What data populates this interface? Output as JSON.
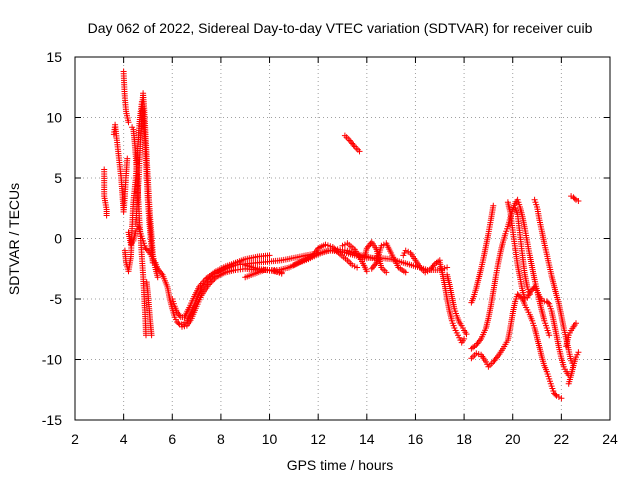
{
  "chart_data": {
    "type": "scatter",
    "title": "Day 062 of 2022, Sidereal Day-to-day VTEC variation (SDTVAR) for receiver cuib",
    "xlabel": "GPS time / hours",
    "ylabel": "SDTVAR / TECUs",
    "xlim": [
      2,
      24
    ],
    "ylim": [
      -15,
      15
    ],
    "xticks": [
      2,
      4,
      6,
      8,
      10,
      12,
      14,
      16,
      18,
      20,
      22,
      24
    ],
    "yticks": [
      -15,
      -10,
      -5,
      0,
      5,
      10,
      15
    ],
    "grid": true,
    "marker": "+",
    "color": "#ff0000",
    "tracks": [
      [
        [
          3.2,
          5.7
        ],
        [
          3.2,
          3.5
        ],
        [
          3.3,
          2.4
        ],
        [
          3.3,
          1.9
        ]
      ],
      [
        [
          3.6,
          8.6
        ],
        [
          3.65,
          9.4
        ],
        [
          3.9,
          5.0
        ],
        [
          3.95,
          3.6
        ],
        [
          4.0,
          2.2
        ],
        [
          4.05,
          3.5
        ],
        [
          4.1,
          5.2
        ],
        [
          4.15,
          6.6
        ]
      ],
      [
        [
          4.0,
          13.8
        ],
        [
          4.05,
          11.6
        ],
        [
          4.1,
          10.5
        ],
        [
          4.2,
          9.6
        ]
      ],
      [
        [
          4.05,
          -1.0
        ],
        [
          4.1,
          -2.0
        ],
        [
          4.2,
          -2.7
        ],
        [
          4.3,
          -1.5
        ],
        [
          4.35,
          1.0
        ],
        [
          4.4,
          3.0
        ],
        [
          4.5,
          5.0
        ],
        [
          4.55,
          6.5
        ],
        [
          4.6,
          8.0
        ],
        [
          4.65,
          9.5
        ],
        [
          4.7,
          10.5
        ],
        [
          4.75,
          11.3
        ],
        [
          4.8,
          10.5
        ],
        [
          4.85,
          9.0
        ],
        [
          4.9,
          7.0
        ],
        [
          4.95,
          5.0
        ],
        [
          5.0,
          3.0
        ],
        [
          5.05,
          1.5
        ],
        [
          5.1,
          0.3
        ],
        [
          5.15,
          -1.0
        ],
        [
          5.2,
          -2.0
        ]
      ],
      [
        [
          4.35,
          9.2
        ],
        [
          4.4,
          9.0
        ],
        [
          4.45,
          8.0
        ],
        [
          4.5,
          6.8
        ],
        [
          4.55,
          5.2
        ],
        [
          4.6,
          3.4
        ],
        [
          4.65,
          1.5
        ],
        [
          4.7,
          0.0
        ],
        [
          4.75,
          -1.5
        ],
        [
          4.8,
          -3.0
        ],
        [
          4.85,
          -5.0
        ],
        [
          4.9,
          -7.0
        ],
        [
          4.92,
          -8.0
        ]
      ],
      [
        [
          4.5,
          1.2
        ],
        [
          4.55,
          2.6
        ],
        [
          4.6,
          4.2
        ],
        [
          4.65,
          6.2
        ],
        [
          4.7,
          8.5
        ],
        [
          4.75,
          10.4
        ],
        [
          4.8,
          12.0
        ],
        [
          4.85,
          10.6
        ],
        [
          4.9,
          8.6
        ],
        [
          4.95,
          6.6
        ],
        [
          5.0,
          4.8
        ],
        [
          5.05,
          3.0
        ],
        [
          5.1,
          1.4
        ],
        [
          5.15,
          0.2
        ],
        [
          5.2,
          -1.3
        ],
        [
          5.3,
          -2.4
        ],
        [
          5.4,
          -3.2
        ]
      ],
      [
        [
          4.2,
          0.5
        ],
        [
          4.25,
          0.0
        ],
        [
          4.3,
          -0.5
        ],
        [
          4.4,
          -0.2
        ],
        [
          4.5,
          0.6
        ],
        [
          4.6,
          1.0
        ],
        [
          4.7,
          0.4
        ],
        [
          4.8,
          -0.2
        ],
        [
          4.9,
          -0.8
        ],
        [
          5.0,
          -1.0
        ],
        [
          5.1,
          -1.3
        ],
        [
          5.2,
          -1.7
        ],
        [
          5.3,
          -2.0
        ]
      ],
      [
        [
          4.95,
          -3.6
        ],
        [
          5.0,
          -4.6
        ],
        [
          5.05,
          -5.8
        ],
        [
          5.1,
          -7.0
        ],
        [
          5.15,
          -8.0
        ]
      ],
      [
        [
          5.3,
          -2.0
        ],
        [
          5.4,
          -2.5
        ],
        [
          5.6,
          -3.0
        ],
        [
          5.8,
          -4.0
        ],
        [
          5.9,
          -5.0
        ],
        [
          6.0,
          -5.8
        ],
        [
          6.1,
          -6.5
        ],
        [
          6.2,
          -6.9
        ],
        [
          6.3,
          -7.1
        ],
        [
          6.45,
          -7.1
        ],
        [
          6.6,
          -6.8
        ],
        [
          6.8,
          -6.0
        ],
        [
          7.0,
          -5.0
        ],
        [
          7.2,
          -4.2
        ],
        [
          7.5,
          -3.4
        ],
        [
          7.8,
          -2.9
        ],
        [
          8.2,
          -2.5
        ],
        [
          8.6,
          -2.2
        ],
        [
          9.0,
          -2.1
        ],
        [
          9.5,
          -2.0
        ],
        [
          10.0,
          -1.9
        ],
        [
          10.5,
          -1.8
        ],
        [
          11.0,
          -1.6
        ],
        [
          11.5,
          -1.4
        ],
        [
          12.0,
          -1.2
        ],
        [
          12.5,
          -1.0
        ],
        [
          13.0,
          -1.1
        ],
        [
          13.5,
          -1.4
        ],
        [
          14.0,
          -1.6
        ],
        [
          14.5,
          -1.6
        ],
        [
          15.0,
          -1.7
        ],
        [
          15.5,
          -2.0
        ],
        [
          16.0,
          -2.3
        ],
        [
          16.5,
          -2.6
        ],
        [
          17.0,
          -2.6
        ],
        [
          17.3,
          -2.4
        ]
      ],
      [
        [
          6.0,
          -5.0
        ],
        [
          6.1,
          -5.6
        ],
        [
          6.2,
          -6.1
        ],
        [
          6.35,
          -6.5
        ],
        [
          6.5,
          -6.5
        ],
        [
          6.7,
          -5.7
        ],
        [
          6.9,
          -4.8
        ],
        [
          7.1,
          -4.0
        ],
        [
          7.4,
          -3.3
        ],
        [
          7.8,
          -2.7
        ],
        [
          8.2,
          -2.3
        ],
        [
          8.6,
          -2.0
        ],
        [
          9.0,
          -1.7
        ],
        [
          9.5,
          -1.5
        ],
        [
          10.0,
          -1.4
        ]
      ],
      [
        [
          6.4,
          -7.3
        ],
        [
          6.6,
          -7.2
        ],
        [
          6.8,
          -6.6
        ],
        [
          7.0,
          -5.6
        ],
        [
          7.2,
          -4.7
        ],
        [
          7.5,
          -3.8
        ],
        [
          7.8,
          -3.2
        ],
        [
          8.2,
          -2.8
        ],
        [
          8.6,
          -2.6
        ],
        [
          9.0,
          -2.5
        ],
        [
          9.5,
          -2.6
        ],
        [
          10.0,
          -2.6
        ],
        [
          10.5,
          -2.8
        ]
      ],
      [
        [
          9.0,
          -2.2
        ],
        [
          9.5,
          -2.5
        ],
        [
          10.0,
          -2.6
        ],
        [
          10.4,
          -2.6
        ],
        [
          10.8,
          -2.4
        ],
        [
          11.2,
          -2.0
        ],
        [
          11.6,
          -1.7
        ],
        [
          12.0,
          -1.3
        ],
        [
          12.4,
          -1.0
        ],
        [
          12.8,
          -0.9
        ],
        [
          13.2,
          -1.0
        ],
        [
          13.6,
          -1.3
        ],
        [
          14.0,
          -1.5
        ],
        [
          14.4,
          -1.7
        ]
      ],
      [
        [
          9.0,
          -3.2
        ],
        [
          9.4,
          -2.9
        ],
        [
          9.8,
          -2.6
        ],
        [
          10.2,
          -2.7
        ],
        [
          10.5,
          -2.9
        ]
      ],
      [
        [
          11.0,
          -2.2
        ],
        [
          11.4,
          -1.8
        ],
        [
          11.8,
          -1.4
        ],
        [
          12.0,
          -0.8
        ],
        [
          12.3,
          -0.5
        ],
        [
          12.6,
          -0.7
        ],
        [
          12.9,
          -1.3
        ],
        [
          13.2,
          -1.8
        ],
        [
          13.4,
          -2.2
        ],
        [
          13.6,
          -2.4
        ]
      ],
      [
        [
          13.0,
          -0.6
        ],
        [
          13.2,
          -0.4
        ],
        [
          13.5,
          -0.9
        ],
        [
          13.8,
          -1.9
        ],
        [
          14.0,
          -2.7
        ]
      ],
      [
        [
          13.9,
          -1.6
        ],
        [
          14.0,
          -0.8
        ],
        [
          14.2,
          -0.3
        ],
        [
          14.4,
          -0.9
        ],
        [
          14.6,
          -2.4
        ],
        [
          14.8,
          -2.8
        ]
      ],
      [
        [
          14.2,
          -2.5
        ],
        [
          14.4,
          -2.0
        ],
        [
          14.6,
          -0.6
        ],
        [
          14.8,
          -0.4
        ],
        [
          15.0,
          -1.2
        ],
        [
          15.3,
          -2.4
        ],
        [
          15.6,
          -2.8
        ]
      ],
      [
        [
          13.1,
          8.5
        ],
        [
          13.3,
          8.1
        ],
        [
          13.5,
          7.6
        ],
        [
          13.7,
          7.2
        ]
      ],
      [
        [
          15.5,
          -1.4
        ],
        [
          15.6,
          -1.0
        ],
        [
          15.8,
          -1.2
        ],
        [
          16.0,
          -1.8
        ],
        [
          16.2,
          -2.4
        ],
        [
          16.4,
          -2.8
        ],
        [
          16.6,
          -2.6
        ],
        [
          16.8,
          -2.1
        ],
        [
          17.0,
          -1.8
        ]
      ],
      [
        [
          17.0,
          -2.0
        ],
        [
          17.1,
          -2.8
        ],
        [
          17.2,
          -3.8
        ],
        [
          17.3,
          -5.0
        ],
        [
          17.4,
          -6.0
        ],
        [
          17.5,
          -6.8
        ],
        [
          17.6,
          -7.4
        ],
        [
          17.7,
          -7.8
        ],
        [
          17.8,
          -8.2
        ],
        [
          17.9,
          -8.6
        ],
        [
          18.0,
          -8.3
        ]
      ],
      [
        [
          17.3,
          -3.0
        ],
        [
          17.4,
          -3.8
        ],
        [
          17.5,
          -4.8
        ],
        [
          17.6,
          -5.8
        ],
        [
          17.7,
          -6.4
        ],
        [
          17.8,
          -6.9
        ],
        [
          17.9,
          -7.2
        ],
        [
          18.0,
          -7.6
        ],
        [
          18.1,
          -7.9
        ]
      ],
      [
        [
          18.3,
          -5.3
        ],
        [
          18.4,
          -4.8
        ],
        [
          18.5,
          -4.1
        ],
        [
          18.6,
          -3.3
        ],
        [
          18.7,
          -2.5
        ],
        [
          18.8,
          -1.6
        ],
        [
          18.9,
          -0.6
        ],
        [
          19.0,
          0.4
        ],
        [
          19.1,
          1.5
        ],
        [
          19.2,
          2.7
        ]
      ],
      [
        [
          18.3,
          -9.1
        ],
        [
          18.5,
          -8.8
        ],
        [
          18.7,
          -8.3
        ],
        [
          18.9,
          -7.4
        ],
        [
          19.0,
          -6.6
        ],
        [
          19.1,
          -5.6
        ],
        [
          19.2,
          -4.4
        ],
        [
          19.3,
          -3.2
        ],
        [
          19.4,
          -2.1
        ],
        [
          19.5,
          -1.1
        ],
        [
          19.6,
          -0.3
        ],
        [
          19.7,
          0.4
        ],
        [
          19.8,
          1.0
        ],
        [
          19.9,
          1.7
        ],
        [
          20.0,
          2.4
        ],
        [
          20.1,
          2.9
        ],
        [
          20.2,
          3.2
        ],
        [
          20.3,
          2.6
        ],
        [
          20.4,
          1.8
        ],
        [
          20.5,
          0.8
        ],
        [
          20.6,
          -0.3
        ],
        [
          20.7,
          -1.4
        ],
        [
          20.8,
          -2.4
        ],
        [
          20.9,
          -3.4
        ],
        [
          21.0,
          -4.3
        ],
        [
          21.1,
          -5.2
        ],
        [
          21.2,
          -6.0
        ],
        [
          21.3,
          -6.8
        ],
        [
          21.4,
          -7.4
        ],
        [
          21.5,
          -8.0
        ]
      ],
      [
        [
          18.3,
          -9.9
        ],
        [
          18.5,
          -9.5
        ],
        [
          18.7,
          -9.6
        ],
        [
          18.9,
          -10.2
        ],
        [
          19.0,
          -10.6
        ],
        [
          19.2,
          -10.2
        ],
        [
          19.4,
          -9.7
        ],
        [
          19.6,
          -9.1
        ],
        [
          19.8,
          -8.4
        ],
        [
          19.9,
          -7.4
        ],
        [
          20.0,
          -6.2
        ],
        [
          20.1,
          -5.2
        ],
        [
          20.2,
          -4.6
        ],
        [
          20.3,
          -4.8
        ],
        [
          20.4,
          -5.0
        ],
        [
          20.5,
          -5.5
        ],
        [
          20.6,
          -5.9
        ],
        [
          20.7,
          -6.3
        ],
        [
          20.8,
          -6.8
        ],
        [
          20.9,
          -7.4
        ],
        [
          21.0,
          -8.2
        ],
        [
          21.1,
          -9.0
        ],
        [
          21.2,
          -9.8
        ],
        [
          21.3,
          -10.5
        ],
        [
          21.4,
          -11.0
        ],
        [
          21.5,
          -11.6
        ],
        [
          21.6,
          -12.2
        ],
        [
          21.7,
          -12.8
        ],
        [
          21.8,
          -13.0
        ],
        [
          22.0,
          -13.2
        ]
      ],
      [
        [
          19.8,
          3.0
        ],
        [
          19.9,
          2.2
        ],
        [
          20.0,
          0.7
        ],
        [
          20.1,
          -0.8
        ],
        [
          20.2,
          -2.2
        ],
        [
          20.3,
          -3.2
        ],
        [
          20.4,
          -4.3
        ],
        [
          20.5,
          -5.0
        ],
        [
          20.6,
          -4.9
        ],
        [
          20.7,
          -4.5
        ],
        [
          20.8,
          -4.2
        ],
        [
          20.9,
          -4.0
        ],
        [
          21.0,
          -4.3
        ],
        [
          21.1,
          -4.8
        ],
        [
          21.2,
          -5.1
        ],
        [
          21.3,
          -5.2
        ],
        [
          21.4,
          -5.2
        ],
        [
          21.5,
          -5.4
        ],
        [
          21.6,
          -6.0
        ],
        [
          21.7,
          -7.0
        ],
        [
          21.8,
          -8.0
        ],
        [
          21.9,
          -9.0
        ],
        [
          22.0,
          -9.9
        ],
        [
          22.1,
          -10.6
        ],
        [
          22.2,
          -11.0
        ],
        [
          22.3,
          -11.3
        ]
      ],
      [
        [
          20.1,
          2.5
        ],
        [
          20.2,
          2.0
        ],
        [
          20.3,
          0.3
        ],
        [
          20.4,
          -1.4
        ],
        [
          20.5,
          -3.0
        ],
        [
          20.6,
          -4.0
        ],
        [
          20.7,
          -4.6
        ]
      ],
      [
        [
          20.9,
          3.2
        ],
        [
          21.0,
          2.6
        ],
        [
          21.1,
          1.5
        ],
        [
          21.2,
          0.6
        ],
        [
          21.3,
          -0.4
        ],
        [
          21.4,
          -1.3
        ],
        [
          21.5,
          -2.2
        ],
        [
          21.6,
          -3.1
        ],
        [
          21.7,
          -3.9
        ],
        [
          21.8,
          -4.7
        ],
        [
          21.9,
          -5.4
        ],
        [
          22.0,
          -6.4
        ],
        [
          22.1,
          -7.4
        ],
        [
          22.2,
          -8.3
        ],
        [
          22.3,
          -9.2
        ],
        [
          22.4,
          -10.1
        ],
        [
          22.5,
          -10.5
        ]
      ],
      [
        [
          22.2,
          -8.9
        ],
        [
          22.3,
          -8.0
        ],
        [
          22.4,
          -7.6
        ],
        [
          22.5,
          -7.3
        ],
        [
          22.6,
          -7.0
        ]
      ],
      [
        [
          22.3,
          -12.0
        ],
        [
          22.4,
          -11.3
        ],
        [
          22.5,
          -10.5
        ],
        [
          22.6,
          -9.8
        ],
        [
          22.7,
          -9.4
        ]
      ],
      [
        [
          22.4,
          3.5
        ],
        [
          22.5,
          3.4
        ],
        [
          22.6,
          3.2
        ],
        [
          22.7,
          3.1
        ]
      ]
    ]
  }
}
